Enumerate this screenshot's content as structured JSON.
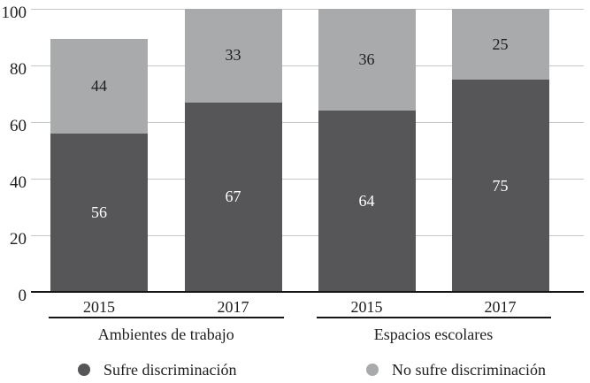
{
  "chart_data": {
    "type": "bar",
    "stacked": true,
    "title": "",
    "xlabel": "",
    "ylabel": "",
    "categories": [
      "2015",
      "2017",
      "2015",
      "2017"
    ],
    "group_labels": [
      "Ambientes de trabajo",
      "Espacios escolares"
    ],
    "groups": [
      {
        "label": "Ambientes de trabajo",
        "bar_indexes": [
          0,
          1
        ]
      },
      {
        "label": "Espacios escolares",
        "bar_indexes": [
          2,
          3
        ]
      }
    ],
    "series": [
      {
        "name": "Sufre discriminación",
        "values": [
          56,
          67,
          64,
          75
        ],
        "color": "#565659",
        "label_color": "#ffffff"
      },
      {
        "name": "No sufre discriminación",
        "values": [
          44,
          33,
          36,
          25
        ],
        "color": "#a9aaac",
        "label_color": "#1e1e1e"
      }
    ],
    "bar_visual_tops": [
      89.5,
      100,
      100,
      100
    ],
    "y_axis": {
      "min": 0,
      "max": 100,
      "ticks": [
        0,
        20,
        40,
        60,
        80,
        100
      ],
      "grid": true
    },
    "legend": [
      {
        "label": "Sufre discriminación",
        "color": "#565659"
      },
      {
        "label": "No sufre discriminación",
        "color": "#a9aaac"
      }
    ],
    "legend_position": "bottom"
  },
  "colors": {
    "grid": "#c7c7c7",
    "axis": "#161616",
    "text": "#1e1e1e",
    "background": "#ffffff"
  }
}
